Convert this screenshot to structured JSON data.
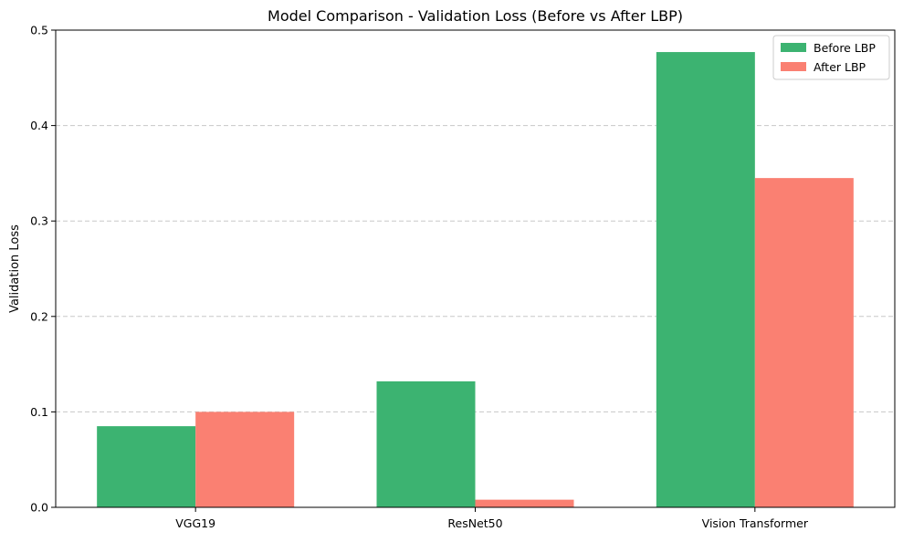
{
  "chart_data": {
    "type": "bar",
    "title": "Model Comparison - Validation Loss (Before vs After LBP)",
    "xlabel": "",
    "ylabel": "Validation Loss",
    "categories": [
      "VGG19",
      "ResNet50",
      "Vision Transformer"
    ],
    "series": [
      {
        "name": "Before LBP",
        "color": "#3cb371",
        "values": [
          0.085,
          0.132,
          0.477
        ]
      },
      {
        "name": "After LBP",
        "color": "#fa8072",
        "values": [
          0.1,
          0.008,
          0.345
        ]
      }
    ],
    "ylim": [
      0,
      0.5
    ],
    "yticks": [
      "0.0",
      "0.1",
      "0.2",
      "0.3",
      "0.4",
      "0.5"
    ],
    "grid": "y-dashed",
    "legend": "top-right"
  }
}
